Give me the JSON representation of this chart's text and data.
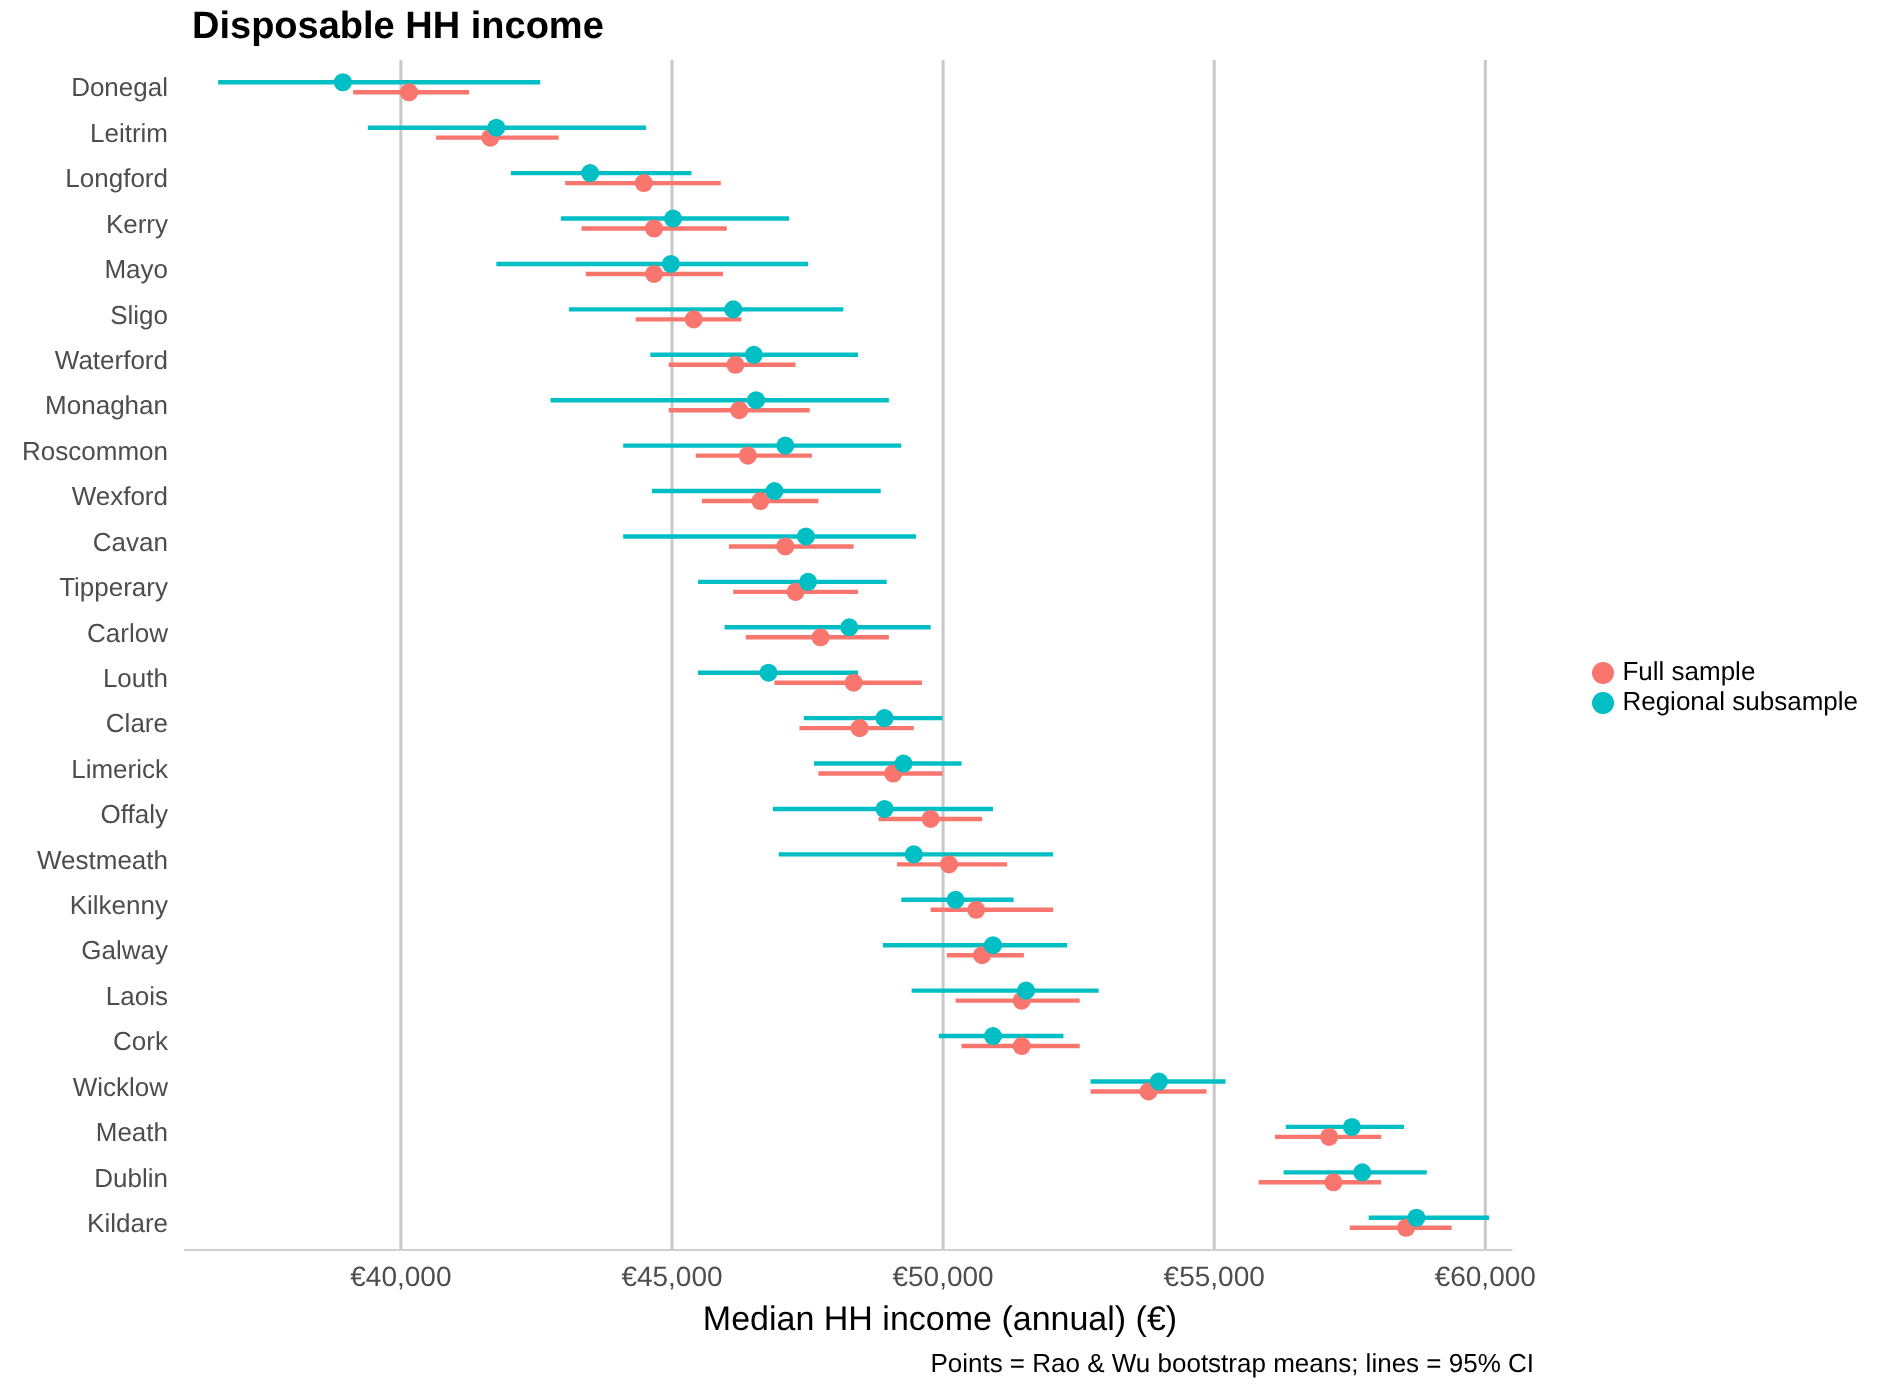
{
  "chart_data": {
    "type": "scatter",
    "orientation": "horizontal",
    "title": "Disposable HH income",
    "xlabel": "Median HH income (annual) (€)",
    "annotations": [
      "Points = Rao & Wu bootstrap means; lines = 95% CI"
    ],
    "categories": [
      "Donegal",
      "Leitrim",
      "Longford",
      "Kerry",
      "Mayo",
      "Sligo",
      "Waterford",
      "Monaghan",
      "Roscommon",
      "Wexford",
      "Cavan",
      "Tipperary",
      "Carlow",
      "Louth",
      "Clare",
      "Limerick",
      "Offaly",
      "Westmeath",
      "Kilkenny",
      "Galway",
      "Laois",
      "Cork",
      "Wicklow",
      "Meath",
      "Dublin",
      "Kildare"
    ],
    "xlim": [
      36000,
      60500
    ],
    "xticks": [
      {
        "value": 40000,
        "label": "€40,000"
      },
      {
        "value": 45000,
        "label": "€45,000"
      },
      {
        "value": 50000,
        "label": "€50,000"
      },
      {
        "value": 55000,
        "label": "€55,000"
      },
      {
        "value": 60000,
        "label": "€60,000"
      }
    ],
    "grid": "x",
    "legend": "right",
    "marker": "circle",
    "series": [
      {
        "name": "Full sample",
        "color": "#f8766d",
        "values": [
          40150,
          41650,
          44480,
          44670,
          44670,
          45400,
          46170,
          46240,
          46400,
          46630,
          47090,
          47280,
          47740,
          48350,
          48460,
          49080,
          49770,
          50110,
          50610,
          50720,
          51450,
          51450,
          53790,
          57120,
          57200,
          58540
        ],
        "errors": [
          [
            39120,
            41260
          ],
          [
            40650,
            42910
          ],
          [
            43030,
            45900
          ],
          [
            43330,
            46010
          ],
          [
            43410,
            45940
          ],
          [
            44330,
            46280
          ],
          [
            44940,
            47280
          ],
          [
            44940,
            47540
          ],
          [
            45440,
            47580
          ],
          [
            45550,
            47700
          ],
          [
            46050,
            48350
          ],
          [
            46130,
            48430
          ],
          [
            46360,
            49000
          ],
          [
            46890,
            49610
          ],
          [
            47350,
            49460
          ],
          [
            47700,
            49990
          ],
          [
            48810,
            50720
          ],
          [
            49150,
            51180
          ],
          [
            49770,
            52030
          ],
          [
            50070,
            51490
          ],
          [
            50230,
            52520
          ],
          [
            50340,
            52520
          ],
          [
            52720,
            54860
          ],
          [
            56120,
            58080
          ],
          [
            55820,
            58080
          ],
          [
            57500,
            59380
          ]
        ]
      },
      {
        "name": "Regional subsample",
        "color": "#00bfc4",
        "values": [
          38930,
          41760,
          43490,
          45020,
          44980,
          46130,
          46510,
          46550,
          47090,
          46890,
          47470,
          47510,
          48270,
          46780,
          48920,
          49270,
          48920,
          49460,
          50230,
          50920,
          51530,
          50920,
          53980,
          57540,
          57730,
          58730
        ],
        "errors": [
          [
            36630,
            42570
          ],
          [
            39390,
            44520
          ],
          [
            42030,
            45360
          ],
          [
            42950,
            47160
          ],
          [
            41760,
            47510
          ],
          [
            43100,
            48160
          ],
          [
            44600,
            48430
          ],
          [
            42760,
            49000
          ],
          [
            44100,
            49230
          ],
          [
            44630,
            48850
          ],
          [
            44100,
            49500
          ],
          [
            45480,
            48960
          ],
          [
            45970,
            49770
          ],
          [
            45480,
            48430
          ],
          [
            47430,
            49990
          ],
          [
            47620,
            50340
          ],
          [
            46860,
            50920
          ],
          [
            46970,
            52030
          ],
          [
            49230,
            51300
          ],
          [
            48890,
            52290
          ],
          [
            49420,
            52870
          ],
          [
            49920,
            52220
          ],
          [
            52720,
            55210
          ],
          [
            56320,
            58500
          ],
          [
            56280,
            58920
          ],
          [
            57850,
            60070
          ]
        ]
      }
    ]
  }
}
